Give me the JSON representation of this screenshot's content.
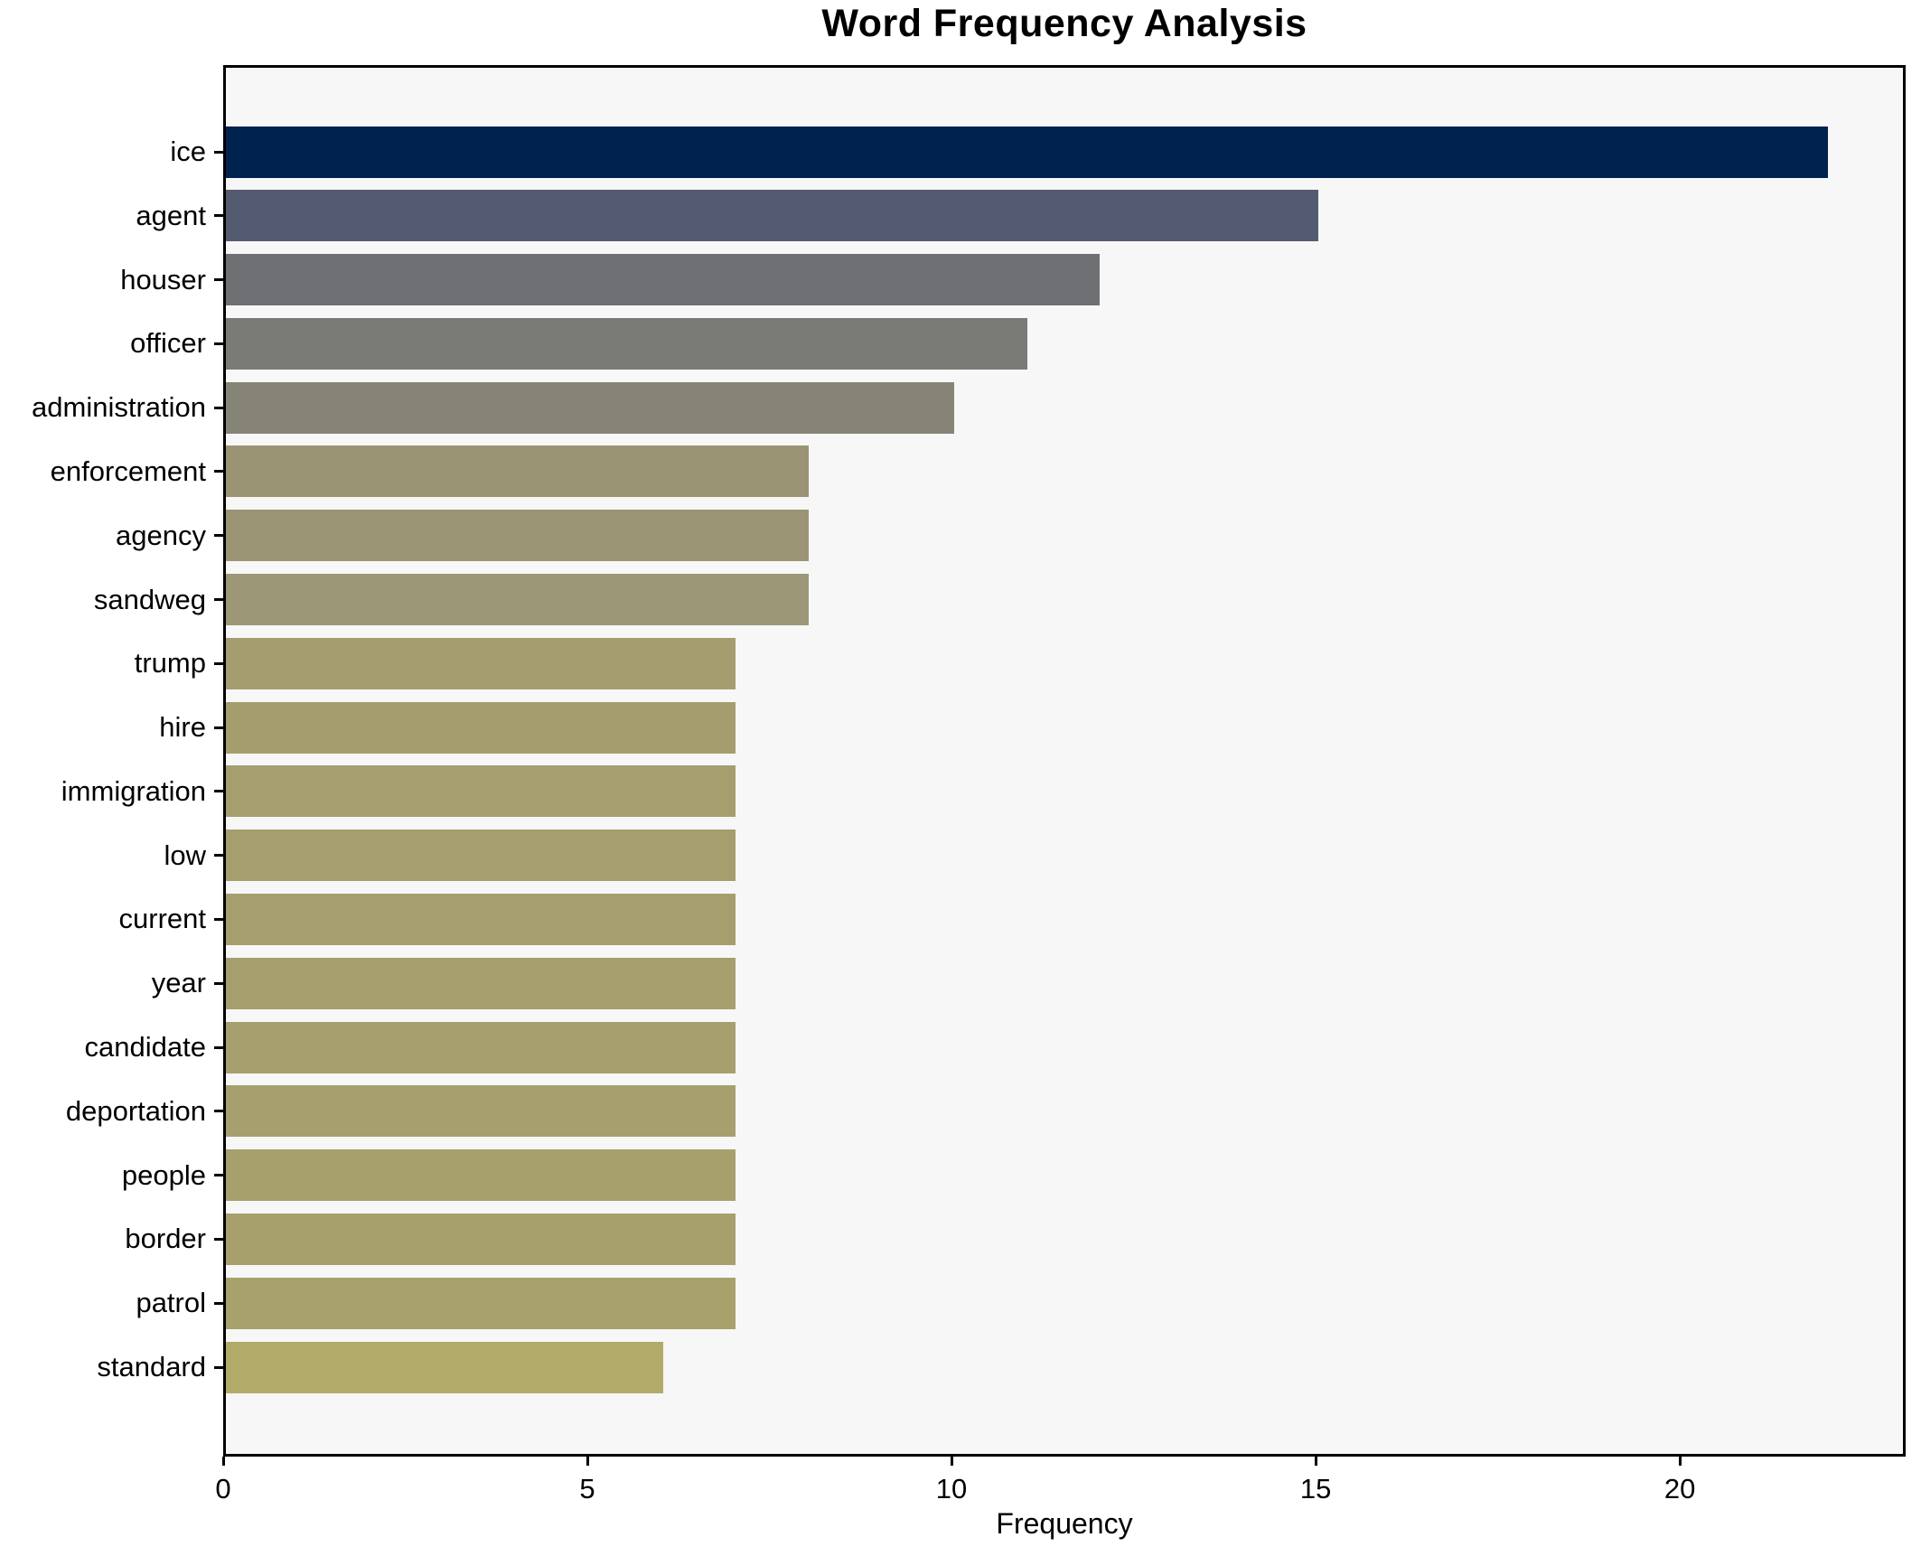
{
  "chart_data": {
    "type": "bar",
    "orientation": "horizontal",
    "title": "Word Frequency Analysis",
    "xlabel": "Frequency",
    "ylabel": "",
    "categories": [
      "ice",
      "agent",
      "houser",
      "officer",
      "administration",
      "enforcement",
      "agency",
      "sandweg",
      "trump",
      "hire",
      "immigration",
      "low",
      "current",
      "year",
      "candidate",
      "deportation",
      "people",
      "border",
      "patrol",
      "standard"
    ],
    "values": [
      22,
      15,
      12,
      11,
      10,
      8,
      8,
      8,
      7,
      7,
      7,
      7,
      7,
      7,
      7,
      7,
      7,
      7,
      7,
      6
    ],
    "bar_colors": [
      "#00224f",
      "#545b70",
      "#6e7074",
      "#7a7a77",
      "#858476",
      "#9a9474",
      "#9b9576",
      "#9c9777",
      "#a49d6f",
      "#a49e6f",
      "#a59e6e",
      "#a59e6e",
      "#a59e6e",
      "#a59f6e",
      "#a6a06e",
      "#a6a06e",
      "#a6a06d",
      "#a7a06d",
      "#a7a16c",
      "#b2aa69"
    ],
    "xticks": [
      0,
      5,
      10,
      15,
      20
    ],
    "xlim": [
      0,
      23.1
    ],
    "grid": false,
    "legend": false,
    "plot_background": "#f7f7f7",
    "spine_color": "#000000",
    "text_color": "#000000"
  }
}
